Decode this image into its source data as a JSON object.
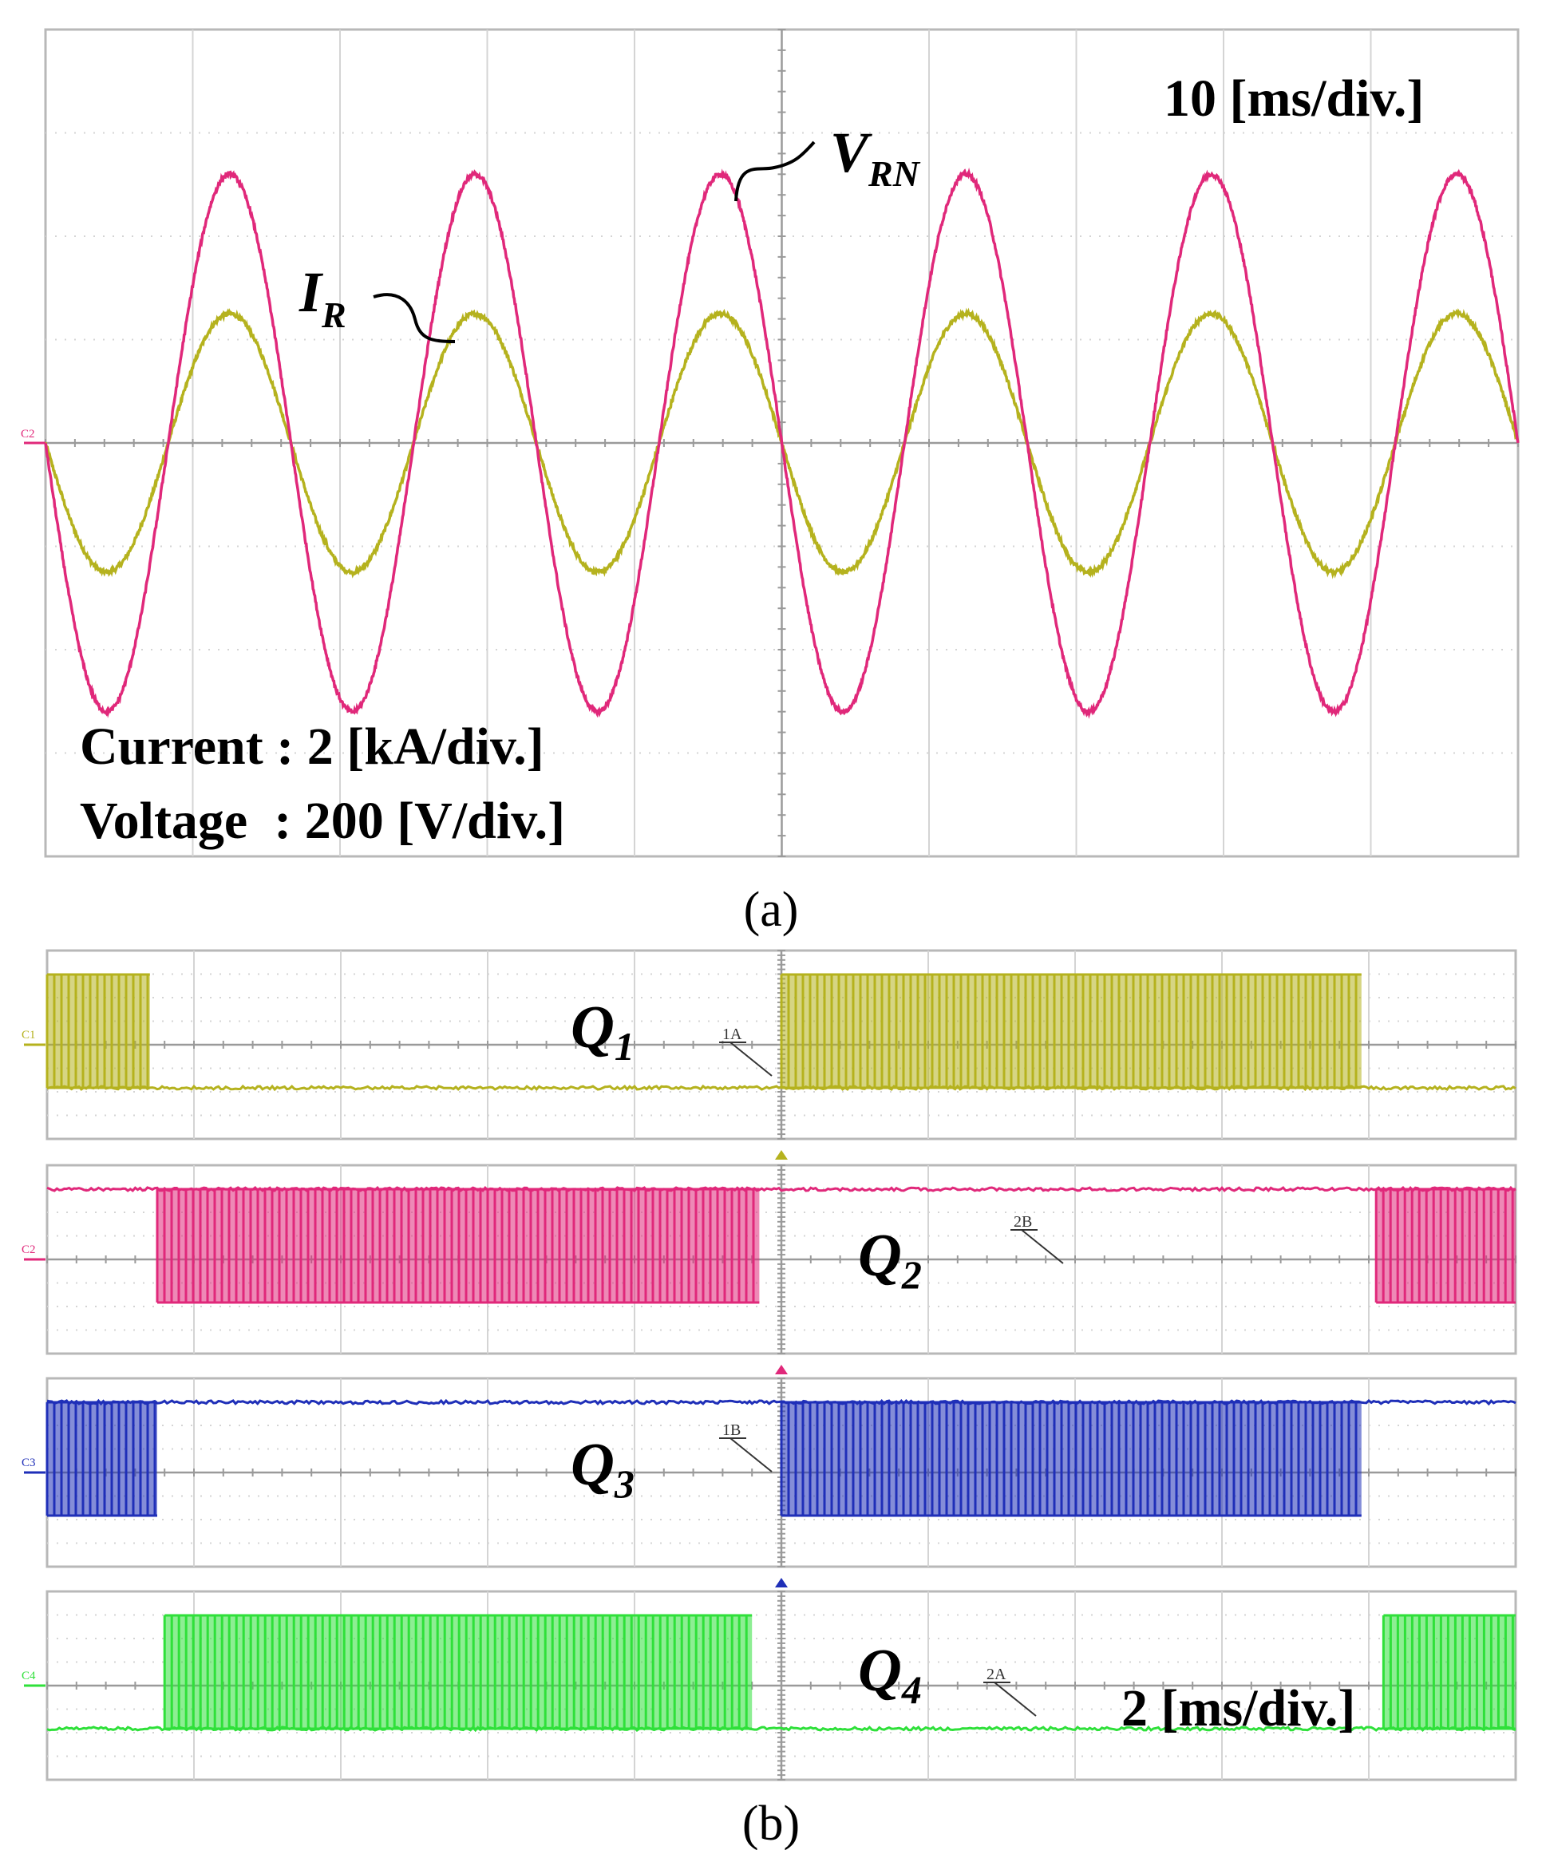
{
  "chart_data": [
    {
      "type": "line",
      "panel": "(a)",
      "timebase": "10 [ms/div.]",
      "scale_lines": [
        "Current : 2 [kA/div.]",
        "Voltage  : 200 [V/div.]"
      ],
      "channel_marker": "C2",
      "grid": true,
      "grid_divisions": {
        "x": 10,
        "y": 8
      },
      "series": [
        {
          "name": "V",
          "subscript": "RN",
          "color": "#e0287a",
          "frequency_hz": 60,
          "amplitude_div": 2.6,
          "phase_deg": 180
        },
        {
          "name": "I",
          "subscript": "R",
          "color": "#b5b21e",
          "frequency_hz": 60,
          "amplitude_div": 1.25,
          "phase_deg": 180
        }
      ]
    },
    {
      "type": "line",
      "panel": "(b)",
      "timebase": "2 [ms/div.]",
      "grid": true,
      "grid_divisions": {
        "x": 10,
        "y": 8
      },
      "series": [
        {
          "name": "Q",
          "subscript": "1",
          "channel": "C1",
          "cursor": "1A",
          "color": "#b5b21e",
          "switching_intervals_div": [
            [
              0.0,
              0.7
            ],
            [
              5.0,
              8.95
            ]
          ],
          "idle_level": "low"
        },
        {
          "name": "Q",
          "subscript": "2",
          "channel": "C2",
          "cursor": "2B",
          "color": "#e0287a",
          "switching_intervals_div": [
            [
              0.75,
              4.85
            ],
            [
              9.05,
              10.0
            ]
          ],
          "idle_level": "high"
        },
        {
          "name": "Q",
          "subscript": "3",
          "channel": "C3",
          "cursor": "1B",
          "color": "#1f2fb8",
          "switching_intervals_div": [
            [
              0.0,
              0.75
            ],
            [
              5.0,
              8.95
            ]
          ],
          "idle_level": "high"
        },
        {
          "name": "Q",
          "subscript": "4",
          "channel": "C4",
          "cursor": "2A",
          "color": "#2fe03a",
          "switching_intervals_div": [
            [
              0.8,
              4.8
            ],
            [
              9.1,
              10.0
            ]
          ],
          "idle_level": "low"
        }
      ]
    }
  ],
  "captions": {
    "a": "(a)",
    "b": "(b)"
  }
}
